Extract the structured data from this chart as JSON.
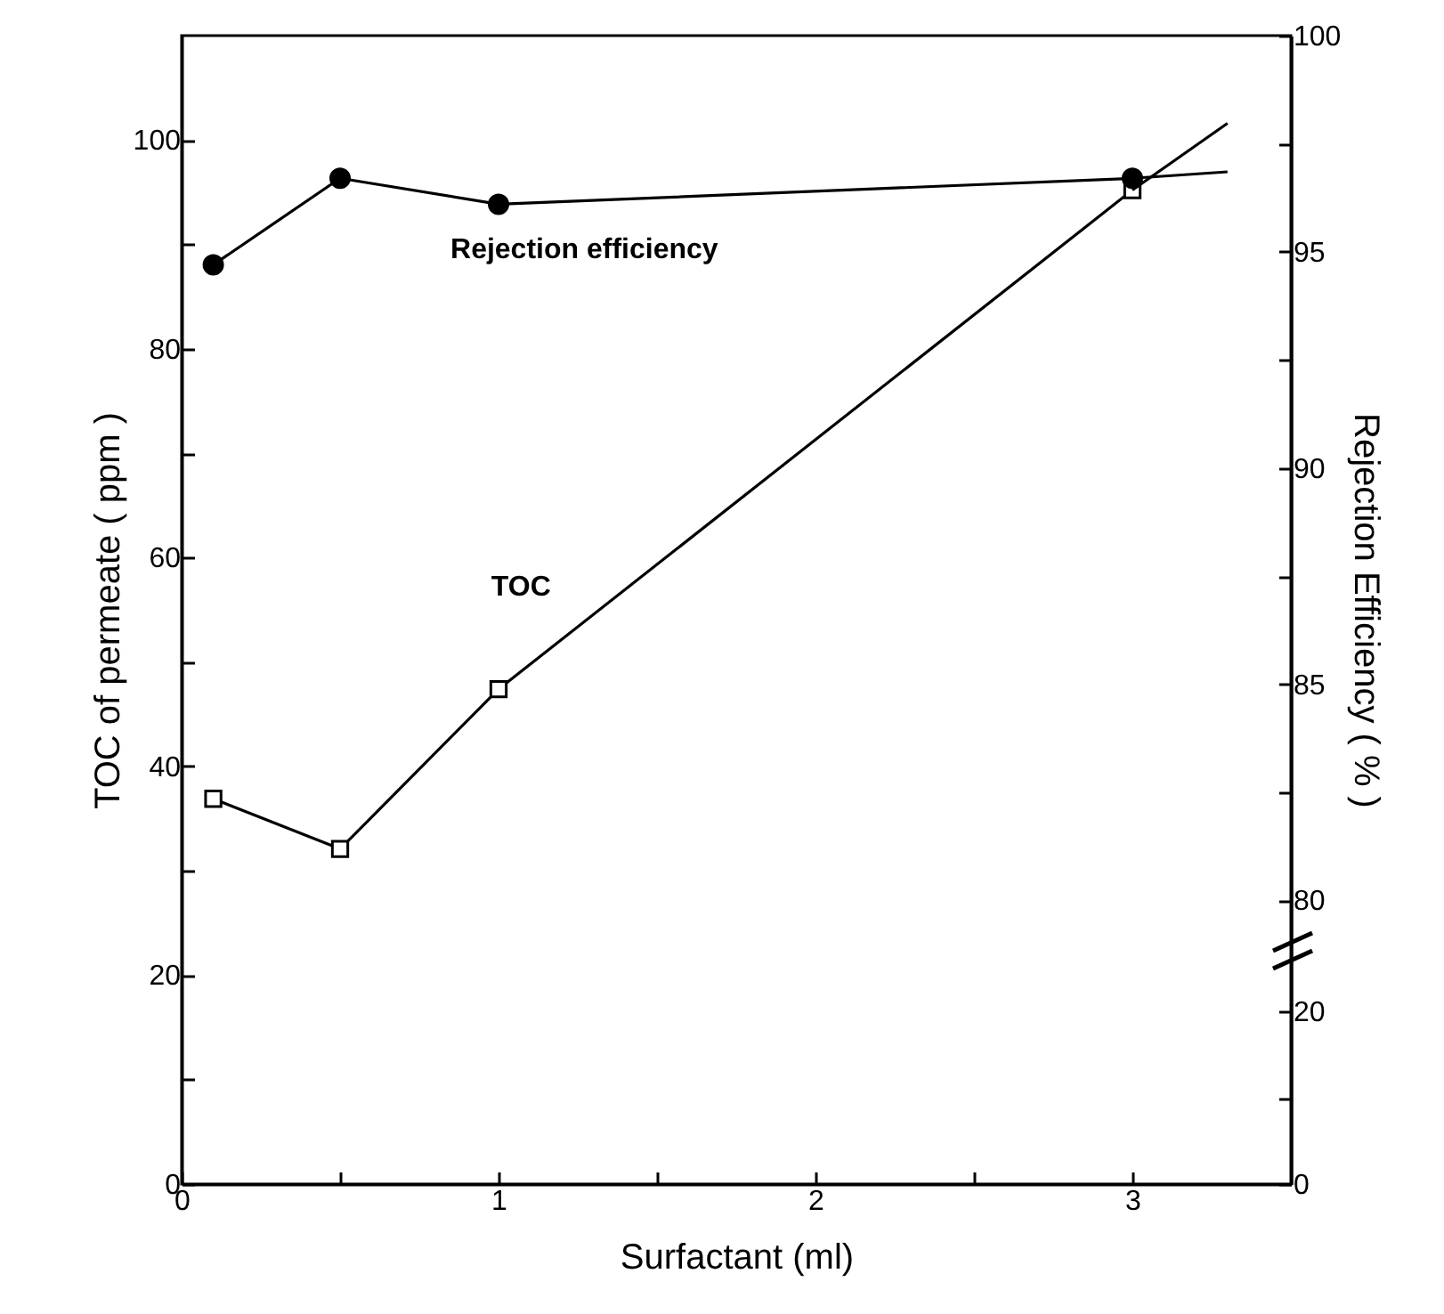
{
  "chart_data": {
    "type": "line",
    "xlabel": "Surfactant (ml)",
    "ylabel": "TOC of permeate ( ppm )",
    "y2label": "Rejection Efficiency ( % )",
    "xlim": [
      0,
      3.5
    ],
    "xticks": [
      0,
      {
        "value": 0.5,
        "label": null
      },
      1,
      {
        "value": 1.5,
        "label": null
      },
      2,
      {
        "value": 2.5,
        "label": null
      },
      3
    ],
    "ylim": [
      0,
      110
    ],
    "yticks": [
      0,
      {
        "value": 10,
        "label": null
      },
      20,
      {
        "value": 30,
        "label": null
      },
      40,
      {
        "value": 50,
        "label": null
      },
      60,
      {
        "value": 70,
        "label": null
      },
      80,
      {
        "value": 90,
        "label": null
      },
      100
    ],
    "y2lim": [
      73.44,
      100
    ],
    "y2ticks": [
      80,
      {
        "value": 82.5,
        "label": null
      },
      85,
      {
        "value": 87.5,
        "label": null
      },
      90,
      {
        "value": 92.5,
        "label": null
      },
      95,
      {
        "value": 97.5,
        "label": null
      },
      100
    ],
    "y3lim": [
      0,
      133.3
    ],
    "y3ticks": [
      0,
      {
        "value": 10,
        "label": null
      },
      20
    ],
    "series": [
      {
        "x": [
          0.1,
          0.5,
          1,
          3
        ],
        "values": [
          36.9,
          32.1,
          47.4,
          95.2
        ],
        "color": "#000000",
        "marker": "square"
      },
      {
        "x": [
          3,
          3.3
        ],
        "values": [
          95.2,
          101.6
        ],
        "color": "#000000",
        "marker": "none"
      },
      {
        "axis": "y2",
        "x": [
          0.1,
          0.5,
          1,
          3
        ],
        "values": [
          94.7,
          96.7,
          96.1,
          96.7
        ],
        "color": "#000000",
        "marker": "circle"
      },
      {
        "axis": "y2",
        "x": [
          3,
          3.3
        ],
        "values": [
          96.7,
          96.85
        ],
        "color": "#000000",
        "marker": "none"
      }
    ],
    "annotations": [
      "Rejection efficiency",
      "TOC"
    ],
    "grid": false
  }
}
